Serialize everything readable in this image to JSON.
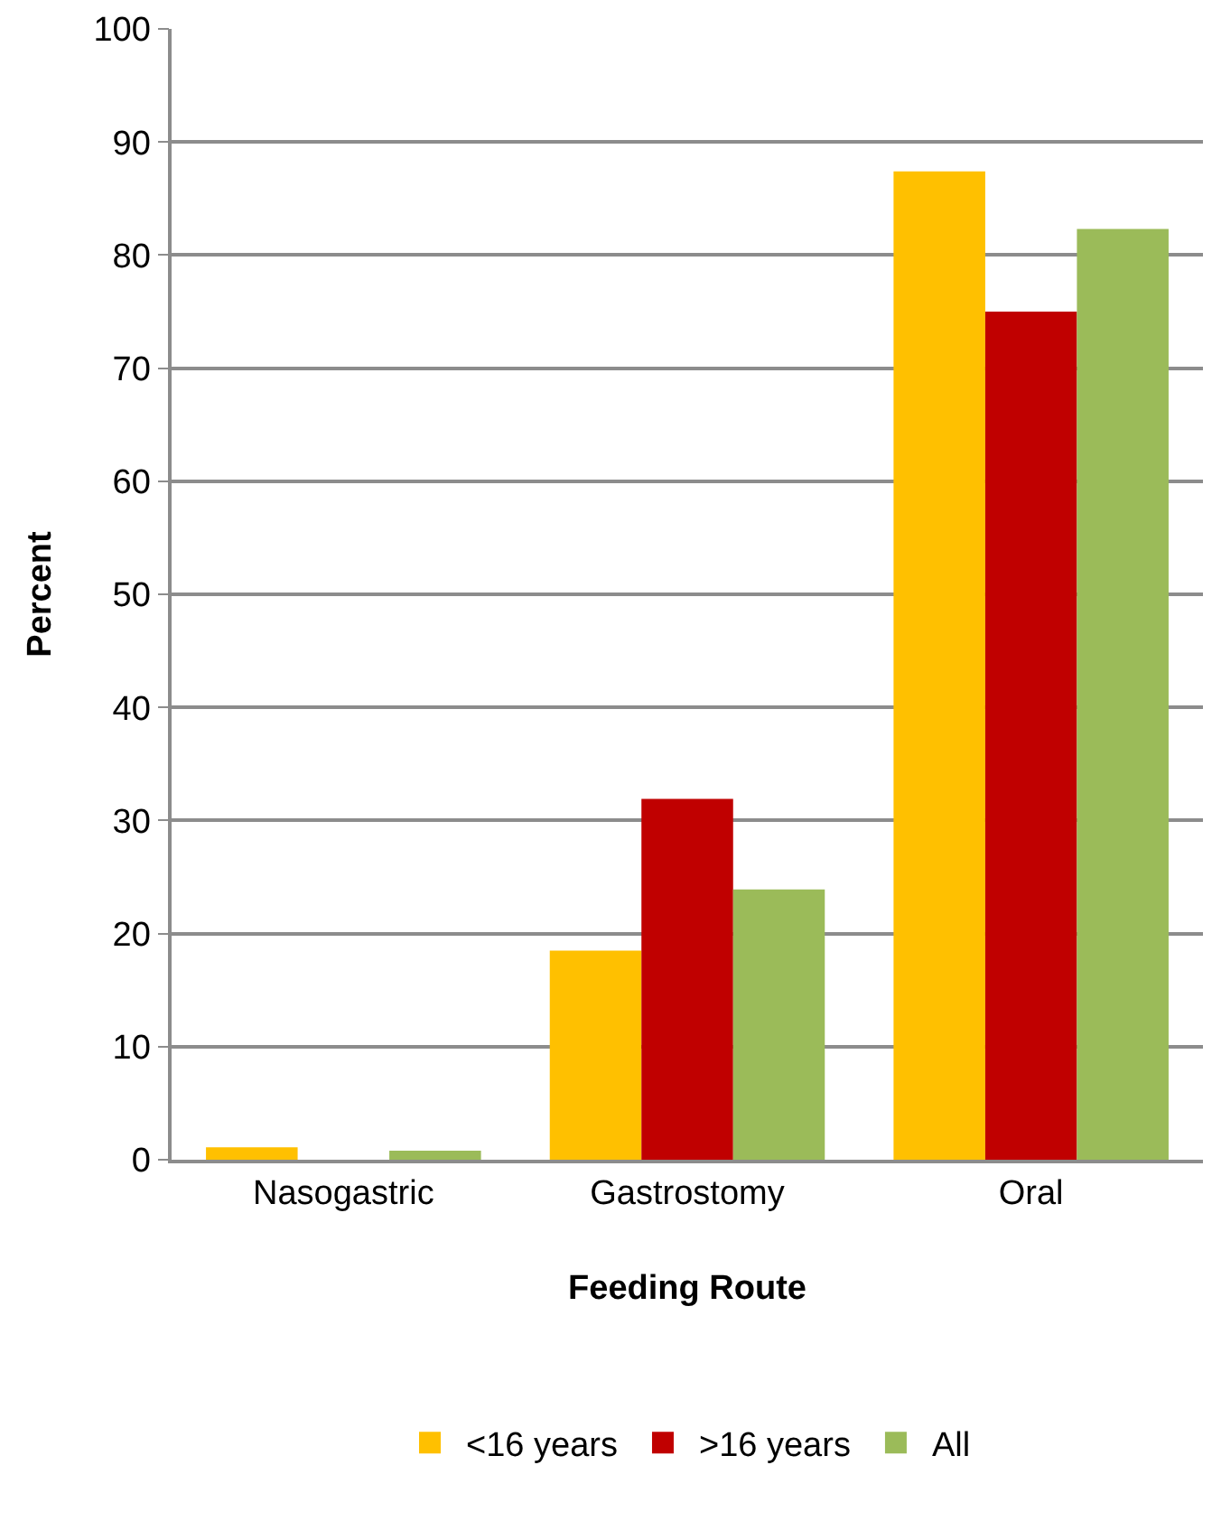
{
  "chart_data": {
    "type": "bar",
    "xlabel": "Feeding Route",
    "ylabel": "Percent",
    "categories": [
      "Nasogastric",
      "Gastrostomy",
      "Oral"
    ],
    "series": [
      {
        "name": "<16 years",
        "color": "#ffc000",
        "values": [
          1.1,
          18.5,
          87.4
        ]
      },
      {
        "name": ">16 years",
        "color": "#c00000",
        "values": [
          0,
          31.9,
          75.0
        ]
      },
      {
        "name": "All",
        "color": "#9bbb59",
        "values": [
          0.8,
          23.9,
          82.3
        ]
      }
    ],
    "ylim": [
      0,
      100
    ],
    "yticks": [
      0,
      10,
      20,
      30,
      40,
      50,
      60,
      70,
      80,
      90,
      100
    ],
    "grid": "y",
    "legend": "bottom"
  }
}
